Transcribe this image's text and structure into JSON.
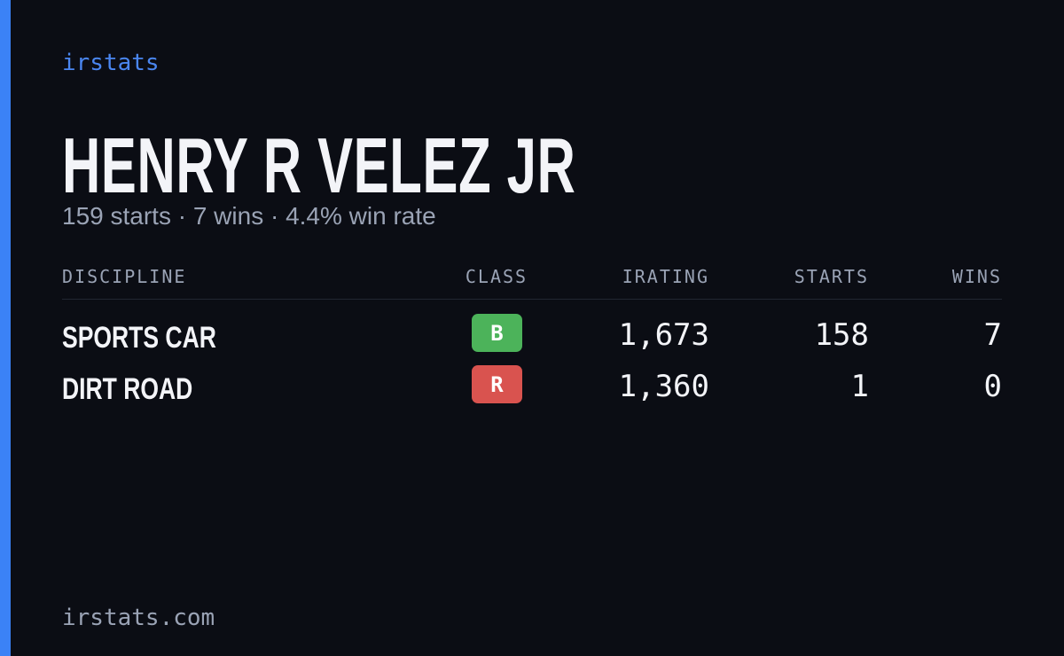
{
  "brand": "irstats",
  "title": "HENRY R VELEZ JR",
  "subtitle": "159 starts · 7 wins · 4.4% win rate",
  "table": {
    "headers": [
      "DISCIPLINE",
      "CLASS",
      "IRATING",
      "STARTS",
      "WINS"
    ],
    "rows": [
      {
        "discipline": "SPORTS CAR",
        "class": "B",
        "class_color": "#4cb35a",
        "irating": "1,673",
        "starts": "158",
        "wins": "7"
      },
      {
        "discipline": "DIRT ROAD",
        "class": "R",
        "class_color": "#d9534f",
        "irating": "1,360",
        "starts": "1",
        "wins": "0"
      }
    ]
  },
  "footer": "irstats.com"
}
